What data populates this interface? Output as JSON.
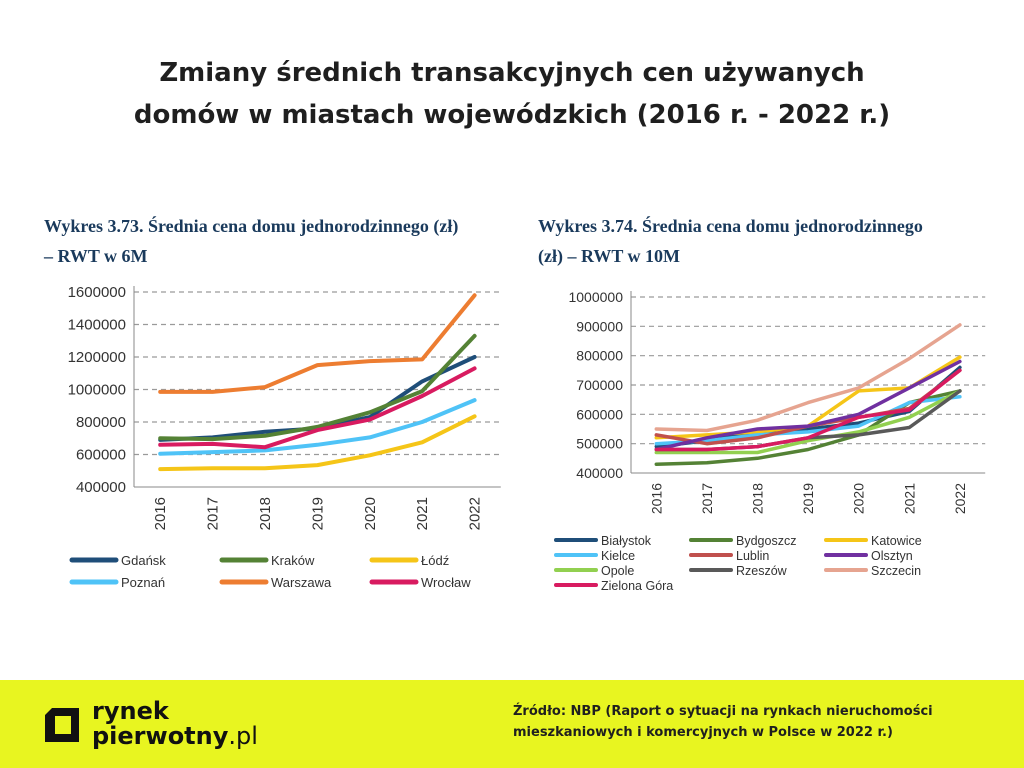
{
  "header": {
    "title_line1": "Zmiany średnich transakcyjnych cen używanych",
    "title_line2": "domów w miastach wojewódzkich (2016 r. - 2022 r.)"
  },
  "footer": {
    "logo_line1": "rynek",
    "logo_line2": "pierwotny",
    "logo_suffix": ".pl",
    "source_line1": "Źródło: NBP (Raport o sytuacji na rynkach nieruchomości",
    "source_line2": "mieszkaniowych i komercyjnych w Polsce w 2022 r.)"
  },
  "chart_data": [
    {
      "type": "line",
      "title_line1": "Wykres 3.73. Średnia cena domu jednorodzinnego (zł)",
      "title_line2": "– RWT w 6M",
      "x": [
        "2016",
        "2017",
        "2018",
        "2019",
        "2020",
        "2021",
        "2022"
      ],
      "ylim": [
        400000,
        1600000
      ],
      "yticks": [
        "400000",
        "600000",
        "800000",
        "1000000",
        "1200000",
        "1400000",
        "1600000"
      ],
      "grid": true,
      "legend_position": "bottom",
      "series": [
        {
          "name": "Gdańsk",
          "color": "#1f4e79",
          "values": [
            690000,
            705000,
            740000,
            760000,
            830000,
            1050000,
            1200000
          ]
        },
        {
          "name": "Kraków",
          "color": "#548235",
          "values": [
            700000,
            695000,
            715000,
            770000,
            860000,
            990000,
            1330000
          ]
        },
        {
          "name": "Łódź",
          "color": "#f5c518",
          "values": [
            510000,
            515000,
            515000,
            535000,
            595000,
            675000,
            835000
          ]
        },
        {
          "name": "Poznań",
          "color": "#4fc3f7",
          "values": [
            605000,
            615000,
            625000,
            660000,
            705000,
            800000,
            935000
          ]
        },
        {
          "name": "Warszawa",
          "color": "#ed7d31",
          "values": [
            985000,
            985000,
            1015000,
            1150000,
            1175000,
            1185000,
            1580000
          ]
        },
        {
          "name": "Wrocław",
          "color": "#d81b60",
          "values": [
            660000,
            665000,
            645000,
            750000,
            815000,
            960000,
            1130000
          ]
        }
      ]
    },
    {
      "type": "line",
      "title_line1": "Wykres 3.74. Średnia cena domu jednorodzinnego",
      "title_line2": "(zł) – RWT w 10M",
      "x": [
        "2016",
        "2017",
        "2018",
        "2019",
        "2020",
        "2021",
        "2022"
      ],
      "ylim": [
        400000,
        1000000
      ],
      "yticks": [
        "400000",
        "500000",
        "600000",
        "700000",
        "800000",
        "900000",
        "1000000"
      ],
      "grid": true,
      "legend_position": "bottom",
      "series": [
        {
          "name": "Białystok",
          "color": "#1f4e79",
          "values": [
            490000,
            510000,
            540000,
            550000,
            570000,
            610000,
            760000
          ]
        },
        {
          "name": "Bydgoszcz",
          "color": "#548235",
          "values": [
            430000,
            435000,
            450000,
            480000,
            530000,
            640000,
            680000
          ]
        },
        {
          "name": "Katowice",
          "color": "#f5c518",
          "values": [
            520000,
            530000,
            540000,
            560000,
            680000,
            690000,
            795000
          ]
        },
        {
          "name": "Kielce",
          "color": "#4fc3f7",
          "values": [
            500000,
            510000,
            530000,
            540000,
            560000,
            640000,
            660000
          ]
        },
        {
          "name": "Lublin",
          "color": "#c0504d",
          "values": [
            530000,
            500000,
            520000,
            560000,
            590000,
            620000,
            750000
          ]
        },
        {
          "name": "Olsztyn",
          "color": "#7030a0",
          "values": [
            480000,
            520000,
            550000,
            560000,
            600000,
            690000,
            780000
          ]
        },
        {
          "name": "Opole",
          "color": "#92d050",
          "values": [
            470000,
            470000,
            470000,
            510000,
            540000,
            590000,
            680000
          ]
        },
        {
          "name": "Rzeszów",
          "color": "#595959",
          "values": [
            480000,
            480000,
            490000,
            520000,
            530000,
            555000,
            680000
          ]
        },
        {
          "name": "Szczecin",
          "color": "#e6a490",
          "values": [
            550000,
            545000,
            580000,
            640000,
            690000,
            790000,
            905000
          ]
        },
        {
          "name": "Zielona Góra",
          "color": "#d81b60",
          "values": [
            480000,
            480000,
            490000,
            520000,
            590000,
            615000,
            750000
          ]
        }
      ]
    }
  ]
}
